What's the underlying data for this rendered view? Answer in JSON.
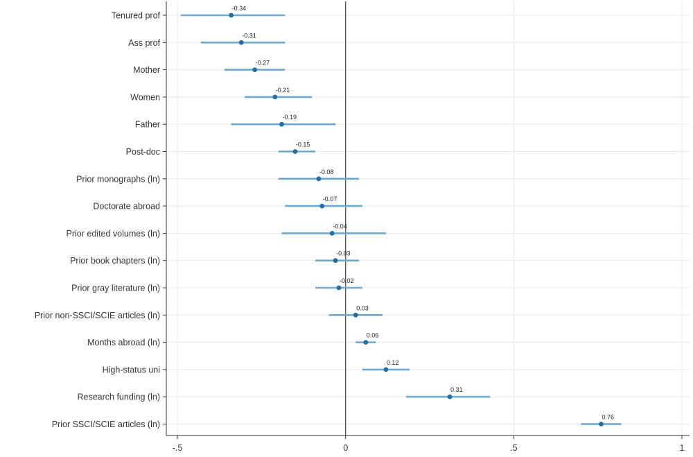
{
  "chart_data": {
    "type": "scatter",
    "subtype": "coefficient-plot",
    "orientation": "horizontal",
    "title": "",
    "xlabel": "",
    "ylabel": "",
    "xlim": [
      -0.5,
      1.0
    ],
    "x_ticks": [
      -0.5,
      0,
      0.5,
      1
    ],
    "x_tick_labels": [
      "-.5",
      "0",
      ".5",
      "1"
    ],
    "grid": true,
    "reference_line_x": 0,
    "colors": {
      "interval": "#6aaad4",
      "point": "#1f6fa8",
      "reference_line": "#555555",
      "grid": "#e8e8e8",
      "axis": "#333333"
    },
    "categories": [
      "Tenured prof",
      "Ass prof",
      "Mother",
      "Women",
      "Father",
      "Post-doc",
      "Prior monographs (ln)",
      "Doctorate abroad",
      "Prior edited volumes (ln)",
      "Prior book chapters (ln)",
      "Prior gray literature (ln)",
      "Prior non-SSCI/SCIE articles (ln)",
      "Months abroad (ln)",
      "High-status uni",
      "Research funding (ln)",
      "Prior SSCI/SCIE articles (ln)"
    ],
    "series": [
      {
        "estimates": [
          -0.34,
          -0.31,
          -0.27,
          -0.21,
          -0.19,
          -0.15,
          -0.08,
          -0.07,
          -0.04,
          -0.03,
          -0.02,
          0.03,
          0.06,
          0.12,
          0.31,
          0.76
        ],
        "estimate_labels": [
          "-0.34",
          "-0.31",
          "-0.27",
          "-0.21",
          "-0.19",
          "-0.15",
          "-0.08",
          "-0.07",
          "-0.04",
          "-0.03",
          "-0.02",
          "0.03",
          "0.06",
          "0.12",
          "0.31",
          "0.76"
        ],
        "ci_low": [
          -0.49,
          -0.43,
          -0.36,
          -0.3,
          -0.34,
          -0.2,
          -0.2,
          -0.18,
          -0.19,
          -0.09,
          -0.09,
          -0.05,
          0.03,
          0.05,
          0.18,
          0.7
        ],
        "ci_high": [
          -0.18,
          -0.18,
          -0.18,
          -0.1,
          -0.03,
          -0.09,
          0.04,
          0.05,
          0.12,
          0.04,
          0.05,
          0.11,
          0.09,
          0.19,
          0.43,
          0.82
        ]
      }
    ]
  }
}
